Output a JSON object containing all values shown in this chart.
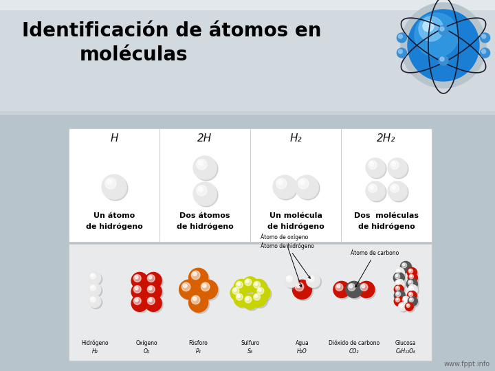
{
  "title_line1": "Identificación de átomos en",
  "title_line2": "moléculas",
  "bg_color": "#b8c4cc",
  "header_bg_top": "#d8dfe4",
  "header_bg_main": "#d0d8de",
  "panel1_bg": "#ffffff",
  "panel2_bg": "#e8eaec",
  "title_fontsize": 20,
  "watermark": "www.fppt.info",
  "h_labels": [
    "H",
    "2H",
    "H₂",
    "2H₂"
  ],
  "h_desc_line1": [
    "Un átomo",
    "Dos átomos",
    "Un molécula",
    "Dos  moléculas"
  ],
  "h_desc_line2": [
    "de hidrógeno",
    "de hidrógeno",
    "de hidrógeno",
    "de hidrógeno"
  ],
  "mol_names_line1": [
    "Hidrógeno",
    "Oxígeno",
    "Fósforo",
    "Sulfuro",
    "Agua",
    "Dióxido de carbono",
    "Glucosa"
  ],
  "mol_names_line2": [
    "H₂",
    "O₂",
    "P₄",
    "S₈",
    "H₂O",
    "CO₂",
    "C₆H₁₂O₆"
  ],
  "atom_label1": "Átomo de oxígeno",
  "atom_label2": "Átomo de hidrógeno",
  "atom_label3": "Átomo de carbono"
}
